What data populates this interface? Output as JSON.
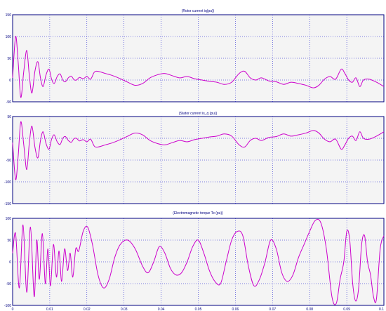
{
  "chart_data": [
    {
      "type": "line",
      "title": "(Rotor current  iq(pu))",
      "xlabel": "",
      "ylabel": "",
      "xlim": [
        0,
        0.1
      ],
      "ylim": [
        -50,
        150
      ],
      "x_ticks": [
        0,
        0.01,
        0.02,
        0.03,
        0.04,
        0.05,
        0.06,
        0.07,
        0.08,
        0.09,
        0.1
      ],
      "y_ticks": [
        -50,
        0,
        50,
        100,
        150
      ],
      "y_tick_labels": [
        "-50",
        "0",
        "50",
        "100",
        "150"
      ],
      "grid": true,
      "series": [
        {
          "color": "#cc00cc",
          "x": [
            0,
            0.0008,
            0.0015,
            0.0022,
            0.003,
            0.0038,
            0.0045,
            0.0052,
            0.006,
            0.0068,
            0.0075,
            0.0082,
            0.009,
            0.0098,
            0.0105,
            0.0112,
            0.012,
            0.0128,
            0.0135,
            0.0142,
            0.015,
            0.0158,
            0.0165,
            0.0172,
            0.018,
            0.019,
            0.02,
            0.021,
            0.022,
            0.023,
            0.025,
            0.027,
            0.029,
            0.031,
            0.033,
            0.035,
            0.037,
            0.039,
            0.041,
            0.043,
            0.045,
            0.047,
            0.049,
            0.051,
            0.053,
            0.055,
            0.057,
            0.059,
            0.061,
            0.0625,
            0.064,
            0.0655,
            0.067,
            0.069,
            0.071,
            0.073,
            0.075,
            0.077,
            0.079,
            0.081,
            0.0825,
            0.084,
            0.0855,
            0.087,
            0.0885,
            0.0895,
            0.0905,
            0.0915,
            0.0925,
            0.0935,
            0.0945,
            0.096,
            0.098,
            0.1
          ],
          "y": [
            5,
            100,
            40,
            -40,
            20,
            68,
            10,
            -30,
            20,
            42,
            5,
            -15,
            12,
            25,
            2,
            -8,
            8,
            14,
            0,
            -4,
            5,
            9,
            1,
            0,
            6,
            3,
            8,
            2,
            18,
            20,
            15,
            10,
            3,
            -5,
            -12,
            -8,
            5,
            12,
            15,
            10,
            5,
            8,
            3,
            0,
            -3,
            -5,
            -10,
            -5,
            15,
            20,
            5,
            0,
            5,
            -2,
            -4,
            -10,
            -5,
            -8,
            -12,
            -18,
            -12,
            2,
            8,
            2,
            25,
            15,
            0,
            -5,
            5,
            -15,
            0,
            2,
            -5,
            -15
          ]
        }
      ]
    },
    {
      "type": "line",
      "title": "(Stator current is_q (pu))",
      "xlabel": "",
      "ylabel": "",
      "xlim": [
        0,
        0.1
      ],
      "ylim": [
        -150,
        50
      ],
      "x_ticks": [
        0,
        0.01,
        0.02,
        0.03,
        0.04,
        0.05,
        0.06,
        0.07,
        0.08,
        0.09,
        0.1
      ],
      "y_ticks": [
        -150,
        -100,
        -50,
        0,
        50
      ],
      "y_tick_labels": [
        "-150",
        "-100",
        "-50",
        "0",
        "50"
      ],
      "grid": true,
      "series": [
        {
          "color": "#cc00cc",
          "x": [
            0,
            0.0008,
            0.0015,
            0.0022,
            0.003,
            0.0038,
            0.0045,
            0.0052,
            0.006,
            0.0068,
            0.0075,
            0.0082,
            0.009,
            0.0098,
            0.0105,
            0.0112,
            0.012,
            0.0128,
            0.0135,
            0.0142,
            0.015,
            0.0158,
            0.0165,
            0.0172,
            0.018,
            0.019,
            0.02,
            0.021,
            0.022,
            0.023,
            0.025,
            0.027,
            0.029,
            0.031,
            0.033,
            0.035,
            0.037,
            0.039,
            0.041,
            0.043,
            0.045,
            0.047,
            0.049,
            0.051,
            0.053,
            0.055,
            0.057,
            0.059,
            0.061,
            0.0625,
            0.064,
            0.0655,
            0.067,
            0.069,
            0.071,
            0.073,
            0.075,
            0.077,
            0.079,
            0.081,
            0.0825,
            0.084,
            0.0855,
            0.087,
            0.0885,
            0.0895,
            0.0905,
            0.0915,
            0.0925,
            0.0935,
            0.0945,
            0.096,
            0.098,
            0.1
          ],
          "y": [
            -10,
            -95,
            -40,
            38,
            -15,
            -72,
            -10,
            28,
            -20,
            -45,
            -5,
            15,
            -12,
            -25,
            -2,
            8,
            -8,
            -14,
            0,
            4,
            -5,
            -9,
            -1,
            0,
            -6,
            -3,
            -8,
            -2,
            -18,
            -20,
            -15,
            -10,
            -3,
            5,
            12,
            8,
            -5,
            -12,
            -15,
            -10,
            -5,
            -8,
            -3,
            0,
            3,
            5,
            10,
            5,
            -15,
            -20,
            -5,
            0,
            -5,
            2,
            4,
            10,
            5,
            8,
            12,
            18,
            12,
            -2,
            -8,
            -2,
            -25,
            -15,
            0,
            5,
            -5,
            15,
            0,
            -2,
            5,
            15
          ]
        }
      ]
    },
    {
      "type": "line",
      "title": "(Electromagnetic torque Te (pu))",
      "xlabel": "",
      "ylabel": "",
      "xlim": [
        0,
        0.1
      ],
      "ylim": [
        -100,
        100
      ],
      "x_ticks": [
        0,
        0.01,
        0.02,
        0.03,
        0.04,
        0.05,
        0.06,
        0.07,
        0.08,
        0.09,
        0.1
      ],
      "x_tick_labels": [
        "0",
        "0.01",
        "0.02",
        "0.03",
        "0.04",
        "0.05",
        "0.06",
        "0.07",
        "0.08",
        "0.09",
        "0.1"
      ],
      "y_ticks": [
        -100,
        -50,
        0,
        50,
        100
      ],
      "y_tick_labels": [
        "-100",
        "-50",
        "0",
        "50",
        "100"
      ],
      "grid": true,
      "series": [
        {
          "color": "#cc00cc",
          "x": [
            0,
            0.0008,
            0.0018,
            0.0028,
            0.0038,
            0.0048,
            0.0058,
            0.0065,
            0.0072,
            0.008,
            0.0088,
            0.0095,
            0.0102,
            0.011,
            0.0118,
            0.0125,
            0.0132,
            0.014,
            0.0148,
            0.0155,
            0.0162,
            0.017,
            0.0178,
            0.019,
            0.0202,
            0.0215,
            0.023,
            0.0245,
            0.026,
            0.0275,
            0.029,
            0.031,
            0.033,
            0.035,
            0.0365,
            0.038,
            0.0395,
            0.041,
            0.0425,
            0.044,
            0.0455,
            0.047,
            0.0485,
            0.05,
            0.0515,
            0.053,
            0.0545,
            0.056,
            0.0575,
            0.059,
            0.0605,
            0.062,
            0.0635,
            0.065,
            0.0665,
            0.068,
            0.0695,
            0.071,
            0.0725,
            0.074,
            0.0755,
            0.077,
            0.0785,
            0.08,
            0.0815,
            0.083,
            0.0845,
            0.086,
            0.0872,
            0.0882,
            0.0892,
            0.09,
            0.0908,
            0.0916,
            0.0924,
            0.0932,
            0.094,
            0.0948,
            0.0956,
            0.0964,
            0.0972,
            0.098,
            0.099,
            0.1
          ],
          "y": [
            20,
            65,
            -60,
            85,
            -70,
            80,
            -80,
            50,
            -40,
            65,
            -50,
            30,
            -55,
            40,
            -35,
            25,
            -45,
            30,
            -20,
            20,
            -35,
            30,
            25,
            70,
            80,
            40,
            -30,
            -60,
            -40,
            10,
            40,
            50,
            30,
            -10,
            -25,
            0,
            35,
            20,
            -15,
            -30,
            -25,
            0,
            35,
            50,
            20,
            -20,
            -45,
            -50,
            0,
            50,
            70,
            60,
            -10,
            -55,
            -40,
            0,
            50,
            30,
            -25,
            -45,
            -30,
            10,
            40,
            70,
            95,
            90,
            30,
            -80,
            -95,
            -40,
            0,
            70,
            50,
            -50,
            -90,
            -60,
            40,
            60,
            0,
            -30,
            -80,
            -85,
            30,
            60
          ]
        }
      ]
    }
  ],
  "colors": {
    "signal": "#cc00cc",
    "grid": "#0000cc",
    "axes": "#000080",
    "plot_bg": "#f4f4f4"
  }
}
